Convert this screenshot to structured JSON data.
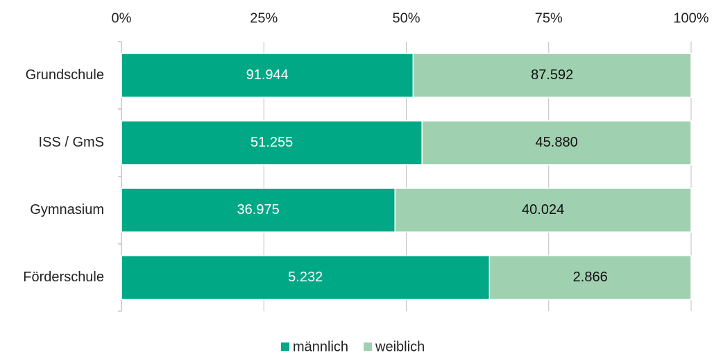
{
  "chart_data": {
    "type": "bar",
    "orientation": "horizontal",
    "stacked": "percent",
    "categories": [
      "Grundschule",
      "ISS / GmS",
      "Gymnasium",
      "Förderschule"
    ],
    "series": [
      {
        "name": "männlich",
        "color": "#00a886",
        "label_color": "#ffffff",
        "values": [
          91944,
          51255,
          36975,
          5232
        ],
        "value_labels": [
          "91.944",
          "51.255",
          "36.975",
          "5.232"
        ]
      },
      {
        "name": "weiblich",
        "color": "#9fd0b0",
        "label_color": "#111111",
        "values": [
          87592,
          45880,
          40024,
          2866
        ],
        "value_labels": [
          "87.592",
          "45.880",
          "40.024",
          "2.866"
        ]
      }
    ],
    "xlim": [
      0,
      100
    ],
    "xticks": [
      {
        "value": 0,
        "label": "0%"
      },
      {
        "value": 25,
        "label": "25%"
      },
      {
        "value": 50,
        "label": "50%"
      },
      {
        "value": 75,
        "label": "75%"
      },
      {
        "value": 100,
        "label": "100%"
      }
    ],
    "grid": true,
    "legend": "bottom"
  }
}
